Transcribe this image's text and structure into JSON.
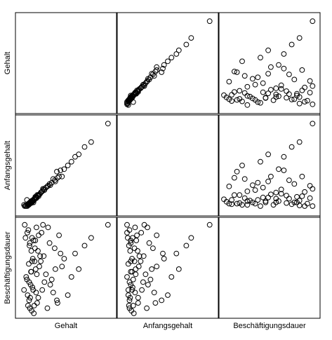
{
  "chart_data": {
    "type": "scatter",
    "variables": [
      "Gehalt",
      "Anfangsgehalt",
      "Beschäftigungsdauer"
    ],
    "ranges": {
      "Gehalt": [
        15000,
        140000
      ],
      "Anfangsgehalt": [
        8000,
        82000
      ],
      "Beschäftigungsdauer": [
        63,
        98
      ]
    },
    "grid": false,
    "legend": "none",
    "points": [
      [
        72000,
        36000,
        81
      ],
      [
        70000,
        41000,
        86
      ],
      [
        21000,
        12000,
        97
      ],
      [
        20000,
        13000,
        72
      ],
      [
        24000,
        17000,
        76
      ],
      [
        31000,
        15000,
        83
      ],
      [
        28000,
        14000,
        65
      ],
      [
        30000,
        16000,
        79
      ],
      [
        33000,
        15000,
        91
      ],
      [
        27000,
        14000,
        68
      ],
      [
        25000,
        13000,
        70
      ],
      [
        35000,
        18000,
        88
      ],
      [
        29000,
        15000,
        74
      ],
      [
        26000,
        14000,
        95
      ],
      [
        38000,
        21000,
        67
      ],
      [
        32000,
        16000,
        84
      ],
      [
        23000,
        12000,
        77
      ],
      [
        40000,
        20000,
        93
      ],
      [
        34000,
        17000,
        66
      ],
      [
        27500,
        13500,
        89
      ],
      [
        45000,
        24000,
        72
      ],
      [
        36000,
        19000,
        80
      ],
      [
        30500,
        15500,
        64
      ],
      [
        22000,
        12500,
        92
      ],
      [
        50000,
        27000,
        78
      ],
      [
        42000,
        22000,
        85
      ],
      [
        28500,
        14500,
        69
      ],
      [
        37000,
        18500,
        96
      ],
      [
        31500,
        16500,
        73
      ],
      [
        26500,
        13000,
        82
      ],
      [
        55000,
        30000,
        90
      ],
      [
        48000,
        25000,
        75
      ],
      [
        39000,
        20500,
        87
      ],
      [
        33500,
        17500,
        63
      ],
      [
        24500,
        12000,
        94
      ],
      [
        60000,
        34000,
        71
      ],
      [
        43000,
        23000,
        83
      ],
      [
        29500,
        15000,
        79
      ],
      [
        65000,
        40000,
        68
      ],
      [
        35500,
        19500,
        91
      ],
      [
        75000,
        42000,
        84
      ],
      [
        58000,
        31000,
        76
      ],
      [
        46000,
        26000,
        97
      ],
      [
        80000,
        45000,
        70
      ],
      [
        62000,
        33000,
        88
      ],
      [
        52000,
        28000,
        65
      ],
      [
        41000,
        21500,
        81
      ],
      [
        68000,
        36000,
        93
      ],
      [
        85000,
        48000,
        77
      ],
      [
        90000,
        52000,
        86
      ],
      [
        56000,
        29000,
        74
      ],
      [
        103000,
        60000,
        89
      ],
      [
        112000,
        64000,
        92
      ],
      [
        66000,
        35000,
        67
      ],
      [
        95000,
        54000,
        80
      ],
      [
        135000,
        79000,
        97
      ],
      [
        47000,
        25500,
        85
      ],
      [
        32500,
        16000,
        72
      ],
      [
        28000,
        15000,
        90
      ],
      [
        37500,
        19000,
        78
      ],
      [
        44000,
        23500,
        94
      ],
      [
        25500,
        13500,
        66
      ],
      [
        30000,
        14500,
        87
      ],
      [
        34500,
        18000,
        83
      ],
      [
        27000,
        14000,
        75
      ],
      [
        53000,
        28500,
        96
      ],
      [
        39500,
        21000,
        69
      ],
      [
        31000,
        16500,
        92
      ],
      [
        63000,
        32000,
        80
      ],
      [
        36500,
        18500,
        71
      ]
    ]
  }
}
